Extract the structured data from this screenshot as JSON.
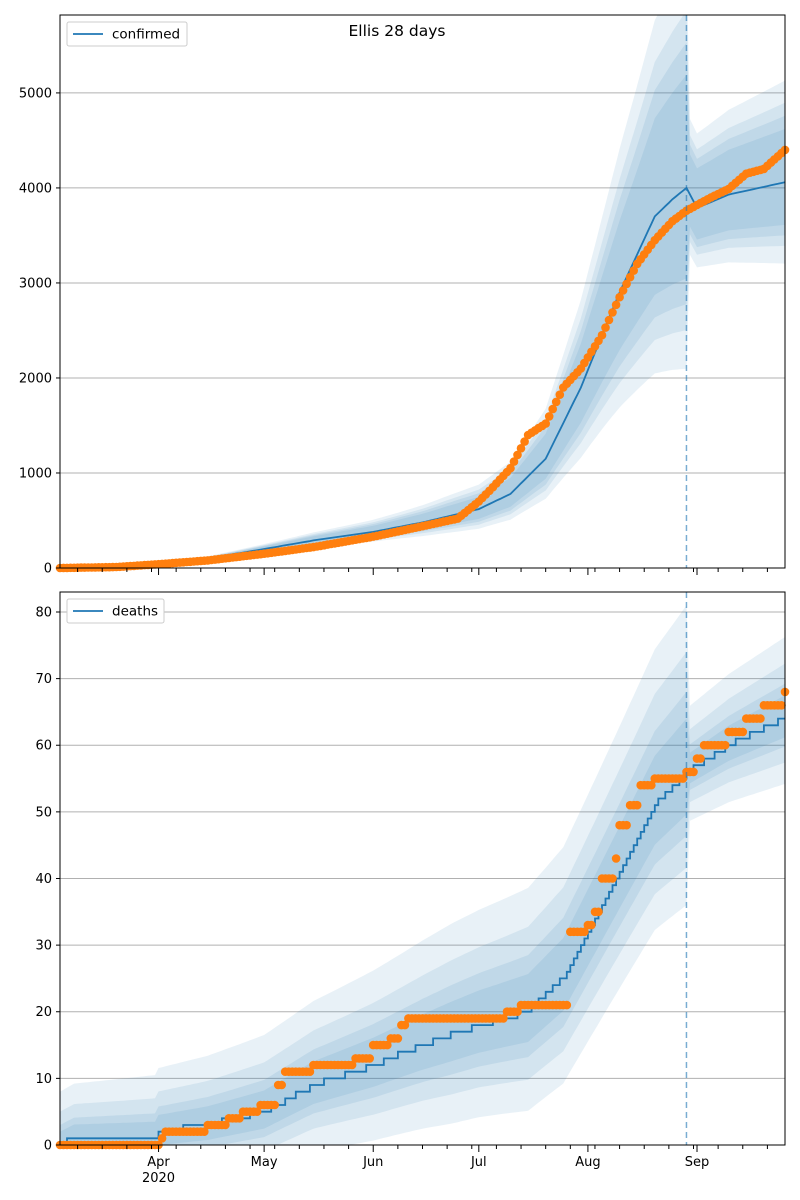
{
  "colors": {
    "model": "#1f77b4",
    "observed": "#ff7f0e",
    "grid": "#b0b0b0",
    "band": "#1f77b4"
  },
  "chart_data": [
    {
      "type": "line",
      "title": "Ellis 28 days",
      "legend": {
        "label": "confirmed",
        "placement": "top-left"
      },
      "xlim": [
        "2020-03-04",
        "2020-09-26"
      ],
      "ylim": [
        0,
        5820
      ],
      "yticks": [
        0,
        1000,
        2000,
        3000,
        4000,
        5000
      ],
      "grid": "horizontal",
      "show_x_labels": false,
      "forecast_start": "2020-08-29",
      "model_points": [
        [
          "2020-03-04",
          0
        ],
        [
          "2020-03-20",
          15
        ],
        [
          "2020-04-01",
          40
        ],
        [
          "2020-04-15",
          100
        ],
        [
          "2020-05-01",
          200
        ],
        [
          "2020-05-15",
          290
        ],
        [
          "2020-06-01",
          380
        ],
        [
          "2020-06-15",
          480
        ],
        [
          "2020-07-01",
          620
        ],
        [
          "2020-07-10",
          780
        ],
        [
          "2020-07-20",
          1150
        ],
        [
          "2020-07-30",
          1900
        ],
        [
          "2020-08-05",
          2450
        ],
        [
          "2020-08-10",
          2900
        ],
        [
          "2020-08-15",
          3300
        ],
        [
          "2020-08-20",
          3700
        ],
        [
          "2020-08-25",
          3880
        ],
        [
          "2020-08-29",
          4000
        ],
        [
          "2020-09-01",
          3790
        ],
        [
          "2020-09-10",
          3930
        ],
        [
          "2020-09-26",
          4060
        ]
      ],
      "band_offsets": [
        [
          0,
          0,
          0
        ],
        [
          0.1,
          0.2,
          0.35
        ],
        [
          0.12,
          0.26,
          0.45
        ],
        [
          0.14,
          0.32,
          0.55
        ],
        [
          0.18,
          0.4,
          0.7
        ]
      ],
      "observed_points": [
        [
          "2020-03-04",
          0
        ],
        [
          "2020-03-20",
          10
        ],
        [
          "2020-04-01",
          40
        ],
        [
          "2020-04-15",
          80
        ],
        [
          "2020-05-01",
          150
        ],
        [
          "2020-05-15",
          220
        ],
        [
          "2020-06-01",
          330
        ],
        [
          "2020-06-15",
          440
        ],
        [
          "2020-06-25",
          520
        ],
        [
          "2020-07-01",
          700
        ],
        [
          "2020-07-05",
          850
        ],
        [
          "2020-07-10",
          1050
        ],
        [
          "2020-07-15",
          1400
        ],
        [
          "2020-07-20",
          1520
        ],
        [
          "2020-07-25",
          1900
        ],
        [
          "2020-07-30",
          2100
        ],
        [
          "2020-08-05",
          2450
        ],
        [
          "2020-08-10",
          2850
        ],
        [
          "2020-08-15",
          3200
        ],
        [
          "2020-08-20",
          3450
        ],
        [
          "2020-08-25",
          3650
        ],
        [
          "2020-08-29",
          3760
        ],
        [
          "2020-09-05",
          3900
        ],
        [
          "2020-09-10",
          3990
        ],
        [
          "2020-09-15",
          4150
        ],
        [
          "2020-09-20",
          4200
        ],
        [
          "2020-09-26",
          4400
        ]
      ]
    },
    {
      "type": "line",
      "title": "",
      "legend": {
        "label": "deaths",
        "placement": "top-left"
      },
      "xlim": [
        "2020-03-04",
        "2020-09-26"
      ],
      "ylim": [
        0,
        83
      ],
      "yticks": [
        0,
        10,
        20,
        30,
        40,
        50,
        60,
        70,
        80
      ],
      "grid": "horizontal",
      "forecast_start": "2020-08-29",
      "xticks_major": [
        {
          "date": "2020-04-01",
          "label": "Apr",
          "sublabel": "2020"
        },
        {
          "date": "2020-05-01",
          "label": "May"
        },
        {
          "date": "2020-06-01",
          "label": "Jun"
        },
        {
          "date": "2020-07-01",
          "label": "Jul"
        },
        {
          "date": "2020-08-01",
          "label": "Aug"
        },
        {
          "date": "2020-09-01",
          "label": "Sep"
        }
      ],
      "model_points": [
        [
          "2020-03-04",
          0
        ],
        [
          "2020-03-08",
          1
        ],
        [
          "2020-03-31",
          1
        ],
        [
          "2020-04-01",
          2
        ],
        [
          "2020-04-15",
          3
        ],
        [
          "2020-05-01",
          5
        ],
        [
          "2020-05-15",
          9
        ],
        [
          "2020-06-01",
          12
        ],
        [
          "2020-06-15",
          15
        ],
        [
          "2020-07-01",
          18
        ],
        [
          "2020-07-15",
          20
        ],
        [
          "2020-07-25",
          25
        ],
        [
          "2020-08-01",
          32
        ],
        [
          "2020-08-10",
          41
        ],
        [
          "2020-08-20",
          51
        ],
        [
          "2020-08-29",
          56
        ],
        [
          "2020-09-10",
          60
        ],
        [
          "2020-09-26",
          64
        ]
      ],
      "band_offsets": [
        [
          0,
          0,
          0
        ],
        [
          2,
          4,
          8
        ],
        [
          3,
          6,
          12
        ],
        [
          5,
          9,
          18
        ],
        [
          8,
          14,
          25
        ]
      ],
      "observed_points": [
        [
          "2020-03-04",
          0
        ],
        [
          "2020-04-01",
          0
        ],
        [
          "2020-04-02",
          1
        ],
        [
          "2020-04-03",
          2
        ],
        [
          "2020-04-14",
          2
        ],
        [
          "2020-04-15",
          3
        ],
        [
          "2020-04-20",
          3
        ],
        [
          "2020-04-21",
          4
        ],
        [
          "2020-04-25",
          5
        ],
        [
          "2020-04-30",
          6
        ],
        [
          "2020-05-04",
          6
        ],
        [
          "2020-05-05",
          9
        ],
        [
          "2020-05-07",
          11
        ],
        [
          "2020-05-14",
          11
        ],
        [
          "2020-05-15",
          12
        ],
        [
          "2020-05-26",
          12
        ],
        [
          "2020-05-27",
          13
        ],
        [
          "2020-06-01",
          15
        ],
        [
          "2020-06-06",
          16
        ],
        [
          "2020-06-09",
          18
        ],
        [
          "2020-06-11",
          19
        ],
        [
          "2020-07-08",
          19
        ],
        [
          "2020-07-09",
          20
        ],
        [
          "2020-07-13",
          21
        ],
        [
          "2020-07-26",
          21
        ],
        [
          "2020-07-27",
          32
        ],
        [
          "2020-08-01",
          33
        ],
        [
          "2020-08-03",
          35
        ],
        [
          "2020-08-05",
          40
        ],
        [
          "2020-08-09",
          43
        ],
        [
          "2020-08-10",
          48
        ],
        [
          "2020-08-13",
          51
        ],
        [
          "2020-08-16",
          54
        ],
        [
          "2020-08-20",
          55
        ],
        [
          "2020-08-29",
          56
        ],
        [
          "2020-09-01",
          58
        ],
        [
          "2020-09-03",
          60
        ],
        [
          "2020-09-10",
          62
        ],
        [
          "2020-09-15",
          64
        ],
        [
          "2020-09-20",
          66
        ],
        [
          "2020-09-26",
          68
        ]
      ]
    }
  ]
}
